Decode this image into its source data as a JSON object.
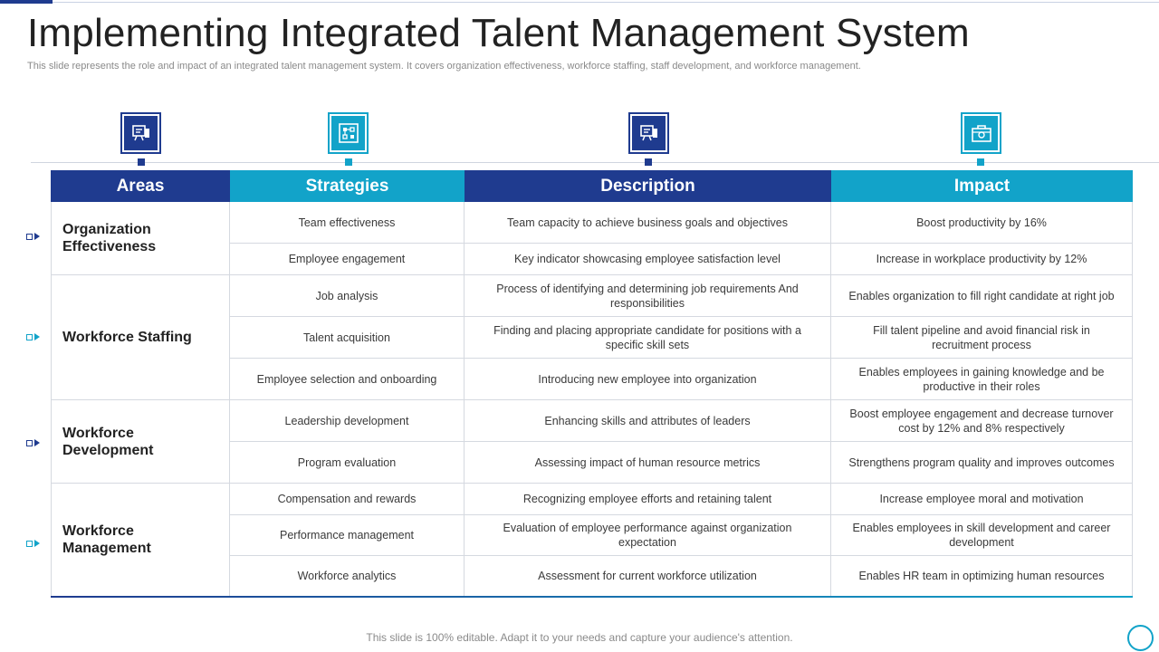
{
  "title": "Implementing Integrated Talent Management System",
  "subtitle": "This slide represents the role and impact of an integrated talent management system. It covers organization effectiveness, workforce staffing, staff development, and workforce management.",
  "icons": [
    "presentation-icon",
    "strategy-board-icon",
    "presentation-icon",
    "briefcase-icon"
  ],
  "colors": {
    "dark_blue": "#1f3b8f",
    "teal": "#12a3c9"
  },
  "table": {
    "headers": [
      "Areas",
      "Strategies",
      "Description",
      "Impact"
    ],
    "groups": [
      {
        "area": "Organization Effectiveness",
        "rows": [
          {
            "strategy": "Team effectiveness",
            "description": "Team capacity to achieve business goals and objectives",
            "impact": "Boost productivity by 16%"
          },
          {
            "strategy": "Employee engagement",
            "description": "Key indicator showcasing employee satisfaction level",
            "impact": "Increase in workplace productivity by 12%"
          }
        ]
      },
      {
        "area": "Workforce Staffing",
        "rows": [
          {
            "strategy": "Job analysis",
            "description": "Process of identifying and determining job requirements And responsibilities",
            "impact": "Enables organization to fill right candidate at right job"
          },
          {
            "strategy": "Talent acquisition",
            "description": "Finding and placing appropriate candidate for positions with a specific skill sets",
            "impact": "Fill talent pipeline and avoid financial risk in recruitment process"
          },
          {
            "strategy": "Employee selection and onboarding",
            "description": "Introducing new employee into organization",
            "impact": "Enables employees in gaining knowledge and be productive in their roles"
          }
        ]
      },
      {
        "area": "Workforce Development",
        "rows": [
          {
            "strategy": "Leadership development",
            "description": "Enhancing skills and attributes of leaders",
            "impact": "Boost employee engagement and decrease turnover cost by 12% and 8% respectively"
          },
          {
            "strategy": "Program evaluation",
            "description": "Assessing impact of human resource metrics",
            "impact": "Strengthens program quality and improves outcomes"
          }
        ]
      },
      {
        "area": "Workforce Management",
        "rows": [
          {
            "strategy": "Compensation and rewards",
            "description": "Recognizing employee efforts and retaining talent",
            "impact": "Increase employee moral and motivation"
          },
          {
            "strategy": "Performance management",
            "description": "Evaluation of employee performance against organization expectation",
            "impact": "Enables employees in skill development and career development"
          },
          {
            "strategy": "Workforce analytics",
            "description": "Assessment for current workforce utilization",
            "impact": "Enables HR team in optimizing human resources"
          }
        ]
      }
    ]
  },
  "footer": "This slide is 100% editable. Adapt it to your needs and capture your audience's attention."
}
